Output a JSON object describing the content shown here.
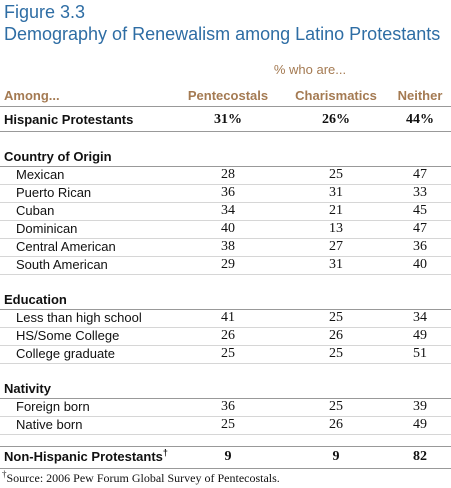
{
  "header": {
    "figure": "Figure 3.3",
    "title": "Demography of Renewalism among Latino Protestants"
  },
  "table": {
    "group_label": "% who are...",
    "columns": [
      "Among...",
      "Pentecostals",
      "Charismatics",
      "Neither"
    ],
    "total": {
      "label": "Hispanic Protestants",
      "values": [
        "31%",
        "26%",
        "44%"
      ]
    },
    "sections": [
      {
        "title": "Country of Origin",
        "rows": [
          {
            "label": "Mexican",
            "values": [
              28,
              25,
              47
            ]
          },
          {
            "label": "Puerto Rican",
            "values": [
              36,
              31,
              33
            ]
          },
          {
            "label": "Cuban",
            "values": [
              34,
              21,
              45
            ]
          },
          {
            "label": "Dominican",
            "values": [
              40,
              13,
              47
            ]
          },
          {
            "label": "Central American",
            "values": [
              38,
              27,
              36
            ]
          },
          {
            "label": "South American",
            "values": [
              29,
              31,
              40
            ]
          }
        ]
      },
      {
        "title": "Education",
        "rows": [
          {
            "label": "Less than high school",
            "values": [
              41,
              25,
              34
            ]
          },
          {
            "label": "HS/Some College",
            "values": [
              26,
              26,
              49
            ]
          },
          {
            "label": "College graduate",
            "values": [
              25,
              25,
              51
            ]
          }
        ]
      },
      {
        "title": "Nativity",
        "rows": [
          {
            "label": "Foreign born",
            "values": [
              36,
              25,
              39
            ]
          },
          {
            "label": "Native born",
            "values": [
              25,
              26,
              49
            ]
          }
        ]
      }
    ],
    "other": {
      "label": "Non-Hispanic Protestants",
      "marker": "†",
      "values": [
        9,
        9,
        82
      ]
    }
  },
  "footnote": {
    "marker": "†",
    "text": "Source: 2006 Pew Forum Global Survey of Pentecostals."
  }
}
